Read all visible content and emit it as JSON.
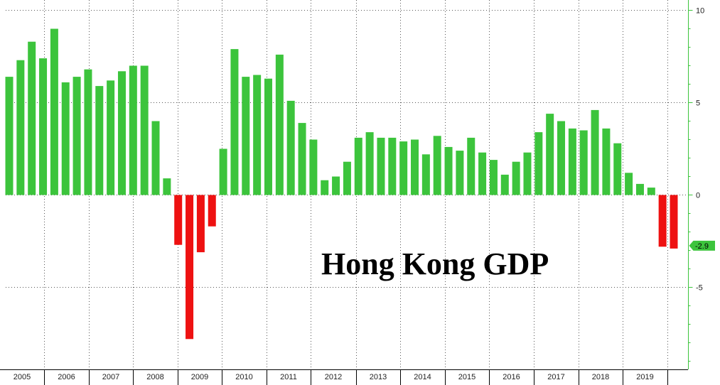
{
  "chart_data": {
    "type": "bar",
    "title": "Hong Kong GDP",
    "years": [
      "2005",
      "2006",
      "2007",
      "2008",
      "2009",
      "2010",
      "2011",
      "2012",
      "2013",
      "2014",
      "2015",
      "2016",
      "2017",
      "2018",
      "2019"
    ],
    "values": [
      6.4,
      7.3,
      8.3,
      7.4,
      9.0,
      6.1,
      6.4,
      6.8,
      5.9,
      6.2,
      6.7,
      7.0,
      7.0,
      4.0,
      0.9,
      -2.7,
      -7.8,
      -3.1,
      -1.7,
      2.5,
      7.9,
      6.4,
      6.5,
      6.3,
      7.6,
      5.1,
      3.9,
      3.0,
      0.8,
      1.0,
      1.8,
      3.1,
      3.4,
      3.1,
      3.1,
      2.9,
      3.0,
      2.2,
      3.2,
      2.6,
      2.4,
      3.1,
      2.3,
      1.9,
      1.1,
      1.8,
      2.3,
      3.4,
      4.4,
      4.0,
      3.6,
      3.5,
      4.6,
      3.6,
      2.8,
      1.2,
      0.6,
      0.4,
      -2.8,
      -2.9
    ],
    "y_ticks": [
      "10",
      "5",
      "0",
      "-5"
    ],
    "ylim": [
      -9.5,
      10
    ],
    "last_value_label": "-2.9",
    "grid": true,
    "axis_position": "right",
    "colors": {
      "positive": "#3cc43c",
      "negative": "#ee1111",
      "axis": "#3cc43c",
      "grid": "#555555"
    }
  }
}
